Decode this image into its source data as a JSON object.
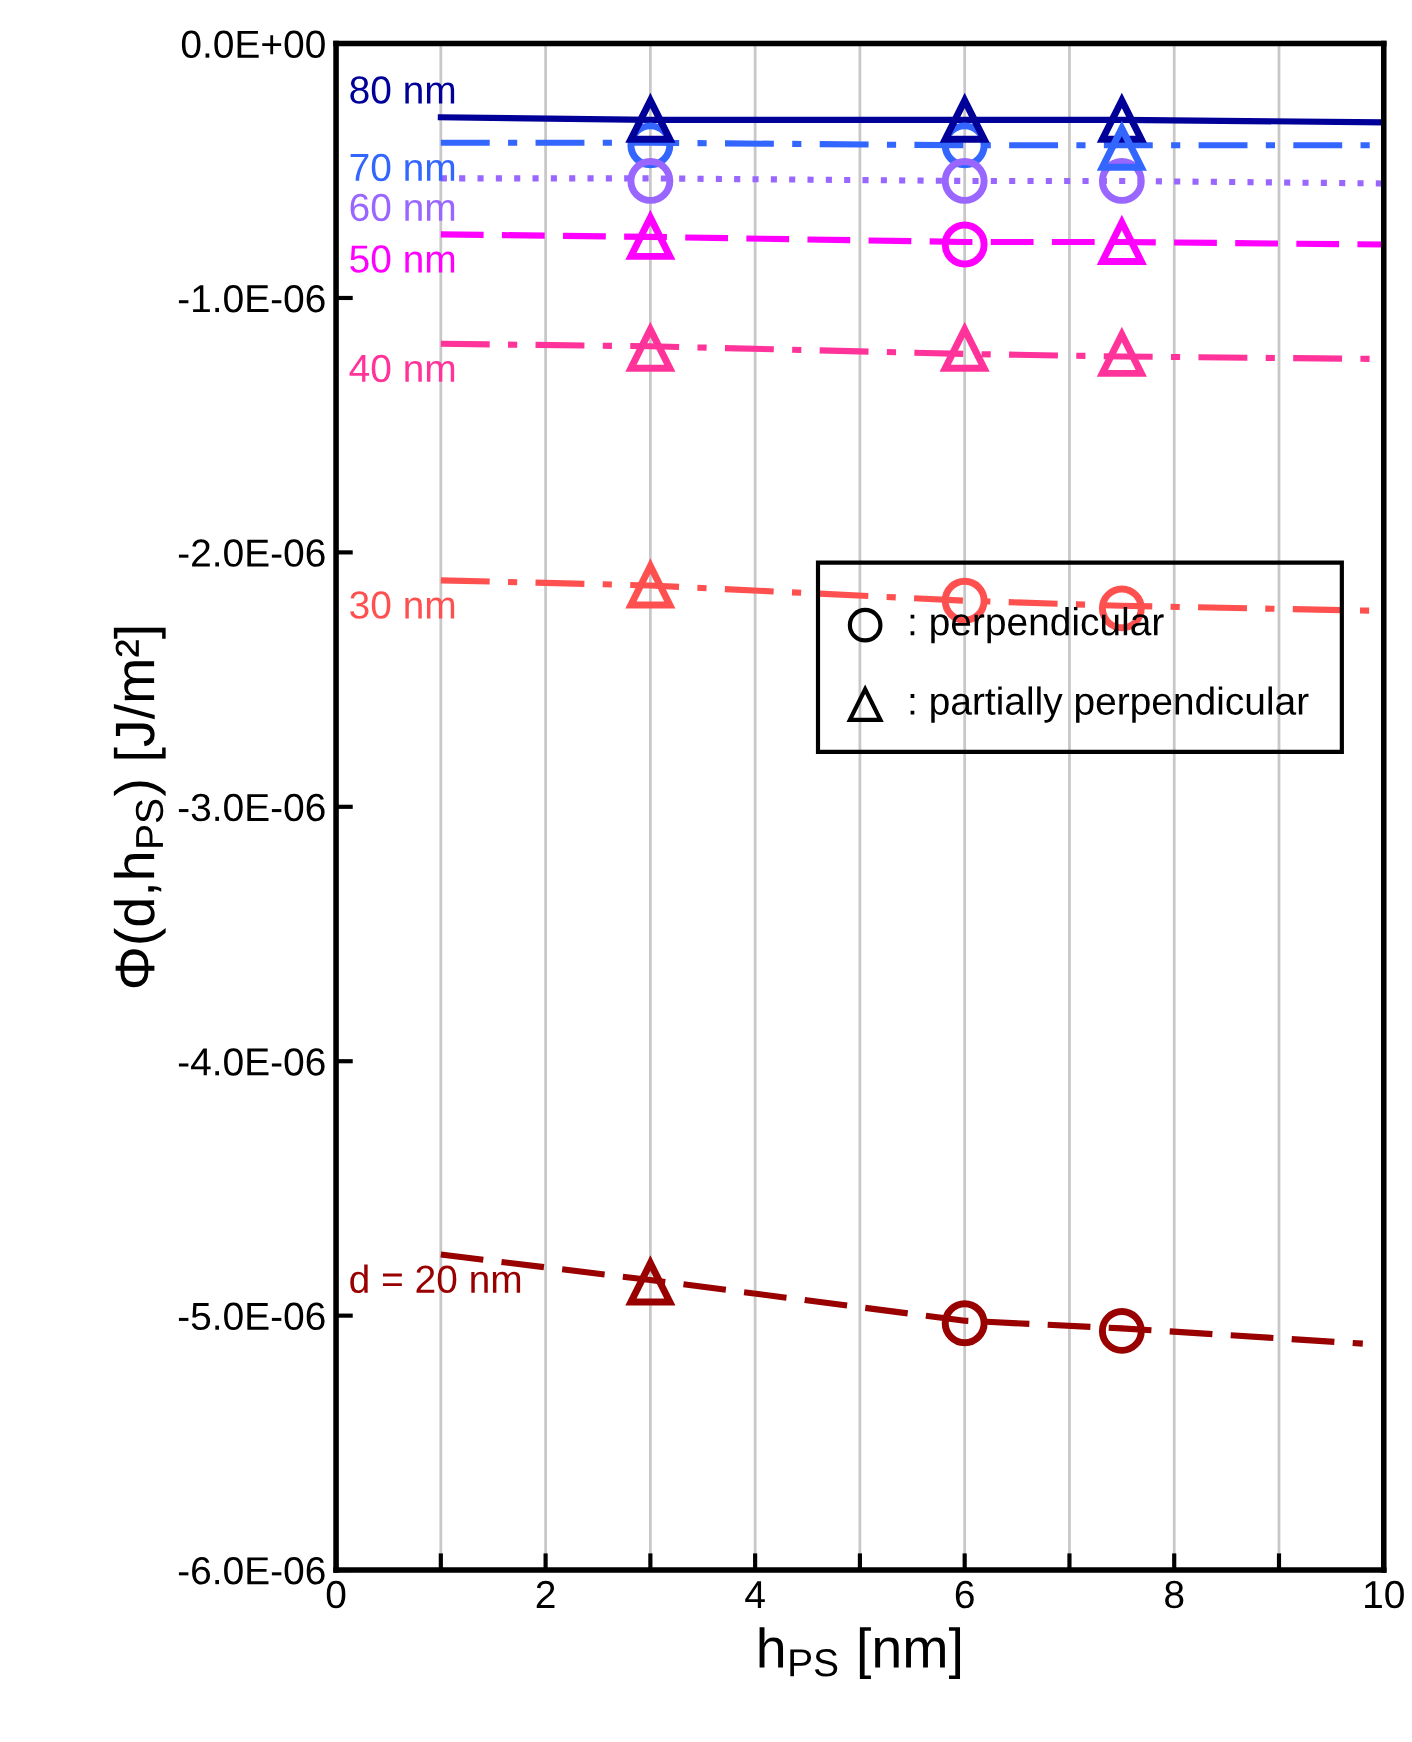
{
  "chart_data": {
    "type": "line",
    "xlabel": "h$_{PS}$ [nm]",
    "ylabel": "Φ(d,h$_{PS}$) [J/m²]",
    "xlim": [
      0,
      10
    ],
    "ylim": [
      -6e-06,
      0
    ],
    "xticks": [
      0,
      {
        "value": 1,
        "label": null
      },
      2,
      {
        "value": 3,
        "label": null
      },
      4,
      {
        "value": 5,
        "label": null
      },
      6,
      {
        "value": 7,
        "label": null
      },
      8,
      {
        "value": 9,
        "label": null
      },
      10
    ],
    "yticks": [
      {
        "value": 0,
        "label": "0.0E+00"
      },
      {
        "value": -1e-06,
        "label": "-1.0E-06"
      },
      {
        "value": -2e-06,
        "label": "-2.0E-06"
      },
      {
        "value": -3e-06,
        "label": "-3.0E-06"
      },
      {
        "value": -4e-06,
        "label": "-4.0E-06"
      },
      {
        "value": -5e-06,
        "label": "-5.0E-06"
      },
      {
        "value": -6e-06,
        "label": "-6.0E-06"
      }
    ],
    "grid": "x",
    "annotations": [
      ": perpendicular",
      ": partially perpendicular"
    ],
    "series": [
      {
        "name": "80 nm",
        "color": "#000099",
        "line_style": "solid",
        "marker": "none",
        "x": [
          1,
          3,
          6,
          7.5,
          10
        ],
        "values": [
          -2.9e-07,
          -3e-07,
          -3e-07,
          -3e-07,
          -3.1e-07
        ]
      },
      {
        "name": "70 nm",
        "color": "#3366ff",
        "line_style": "dashdot",
        "marker": "none",
        "x": [
          1,
          3,
          6,
          7.5,
          10
        ],
        "values": [
          -3.9e-07,
          -3.9e-07,
          -4e-07,
          -4e-07,
          -4e-07
        ]
      },
      {
        "name": "60 nm",
        "color": "#9966ff",
        "line_style": "dotted",
        "marker": "none",
        "x": [
          1,
          3,
          6,
          7.5,
          10
        ],
        "values": [
          -5.3e-07,
          -5.3e-07,
          -5.4e-07,
          -5.4e-07,
          -5.5e-07
        ]
      },
      {
        "name": "50 nm",
        "color": "#ff00ff",
        "line_style": "dashed",
        "marker": "none",
        "x": [
          1,
          3,
          6,
          7.5,
          10
        ],
        "values": [
          -7.5e-07,
          -7.6e-07,
          -7.8e-07,
          -7.8e-07,
          -7.9e-07
        ]
      },
      {
        "name": "40 nm",
        "color": "#ff3399",
        "line_style": "dashdot",
        "marker": "none",
        "x": [
          1,
          3,
          6,
          7.5,
          10
        ],
        "values": [
          -1.18e-06,
          -1.19e-06,
          -1.22e-06,
          -1.23e-06,
          -1.24e-06
        ]
      },
      {
        "name": "30 nm",
        "color": "#ff5050",
        "line_style": "dashdot",
        "marker": "none",
        "x": [
          1,
          3,
          6,
          7.5,
          10
        ],
        "values": [
          -2.11e-06,
          -2.13e-06,
          -2.19e-06,
          -2.21e-06,
          -2.23e-06
        ]
      },
      {
        "name": "d = 20 nm",
        "color": "#990000",
        "line_style": "dashed",
        "marker": "none",
        "x": [
          1,
          3,
          6,
          7.5,
          9.8
        ],
        "values": [
          -4.76e-06,
          -4.86e-06,
          -5.02e-06,
          -5.05e-06,
          -5.11e-06
        ]
      },
      {
        "type": "scatter",
        "marker": "circle",
        "x": [
          3,
          6,
          3,
          6,
          7.5,
          6,
          6,
          7.5,
          6,
          7.5
        ],
        "values": [
          -4e-07,
          -4e-07,
          -5.4e-07,
          -5.4e-07,
          -5.4e-07,
          -7.9e-07,
          -2.19e-06,
          -2.22e-06,
          -5.03e-06,
          -5.06e-06
        ],
        "colors": [
          "#3366ff",
          "#3366ff",
          "#9966ff",
          "#9966ff",
          "#9966ff",
          "#ff00ff",
          "#ff5050",
          "#ff5050",
          "#990000",
          "#990000"
        ]
      },
      {
        "type": "scatter",
        "marker": "triangle",
        "x": [
          3,
          6,
          7.5,
          7.5,
          3,
          7.5,
          3,
          6,
          7.5,
          3,
          3
        ],
        "values": [
          -3e-07,
          -3e-07,
          -3e-07,
          -4.1e-07,
          -7.6e-07,
          -7.8e-07,
          -1.2e-06,
          -1.2e-06,
          -1.22e-06,
          -2.13e-06,
          -4.87e-06
        ],
        "colors": [
          "#000099",
          "#000099",
          "#000099",
          "#3366ff",
          "#ff00ff",
          "#ff00ff",
          "#ff3399",
          "#ff3399",
          "#ff3399",
          "#ff5050",
          "#990000"
        ]
      }
    ]
  }
}
